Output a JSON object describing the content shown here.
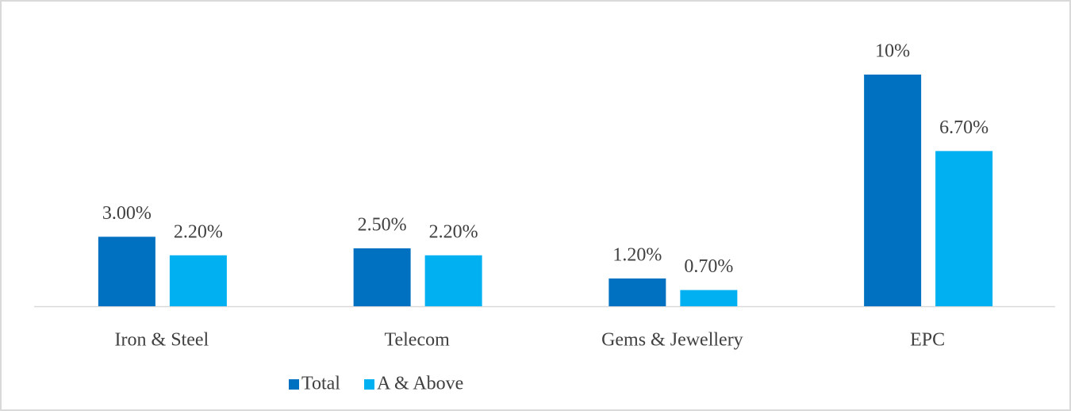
{
  "chart_data": {
    "type": "bar",
    "categories": [
      "Iron & Steel",
      "Telecom",
      "Gems & Jewellery",
      "EPC"
    ],
    "series": [
      {
        "name": "Total",
        "color": "#0070c0",
        "values": [
          3.0,
          2.5,
          1.2,
          10
        ],
        "value_labels": [
          "3.00%",
          "2.50%",
          "1.20%",
          "10%"
        ]
      },
      {
        "name": "A & Above",
        "color": "#00b0f0",
        "values": [
          2.2,
          2.2,
          0.7,
          6.7
        ],
        "value_labels": [
          "2.20%",
          "2.20%",
          "0.70%",
          "6.70%"
        ]
      }
    ],
    "legend": "bottom"
  }
}
